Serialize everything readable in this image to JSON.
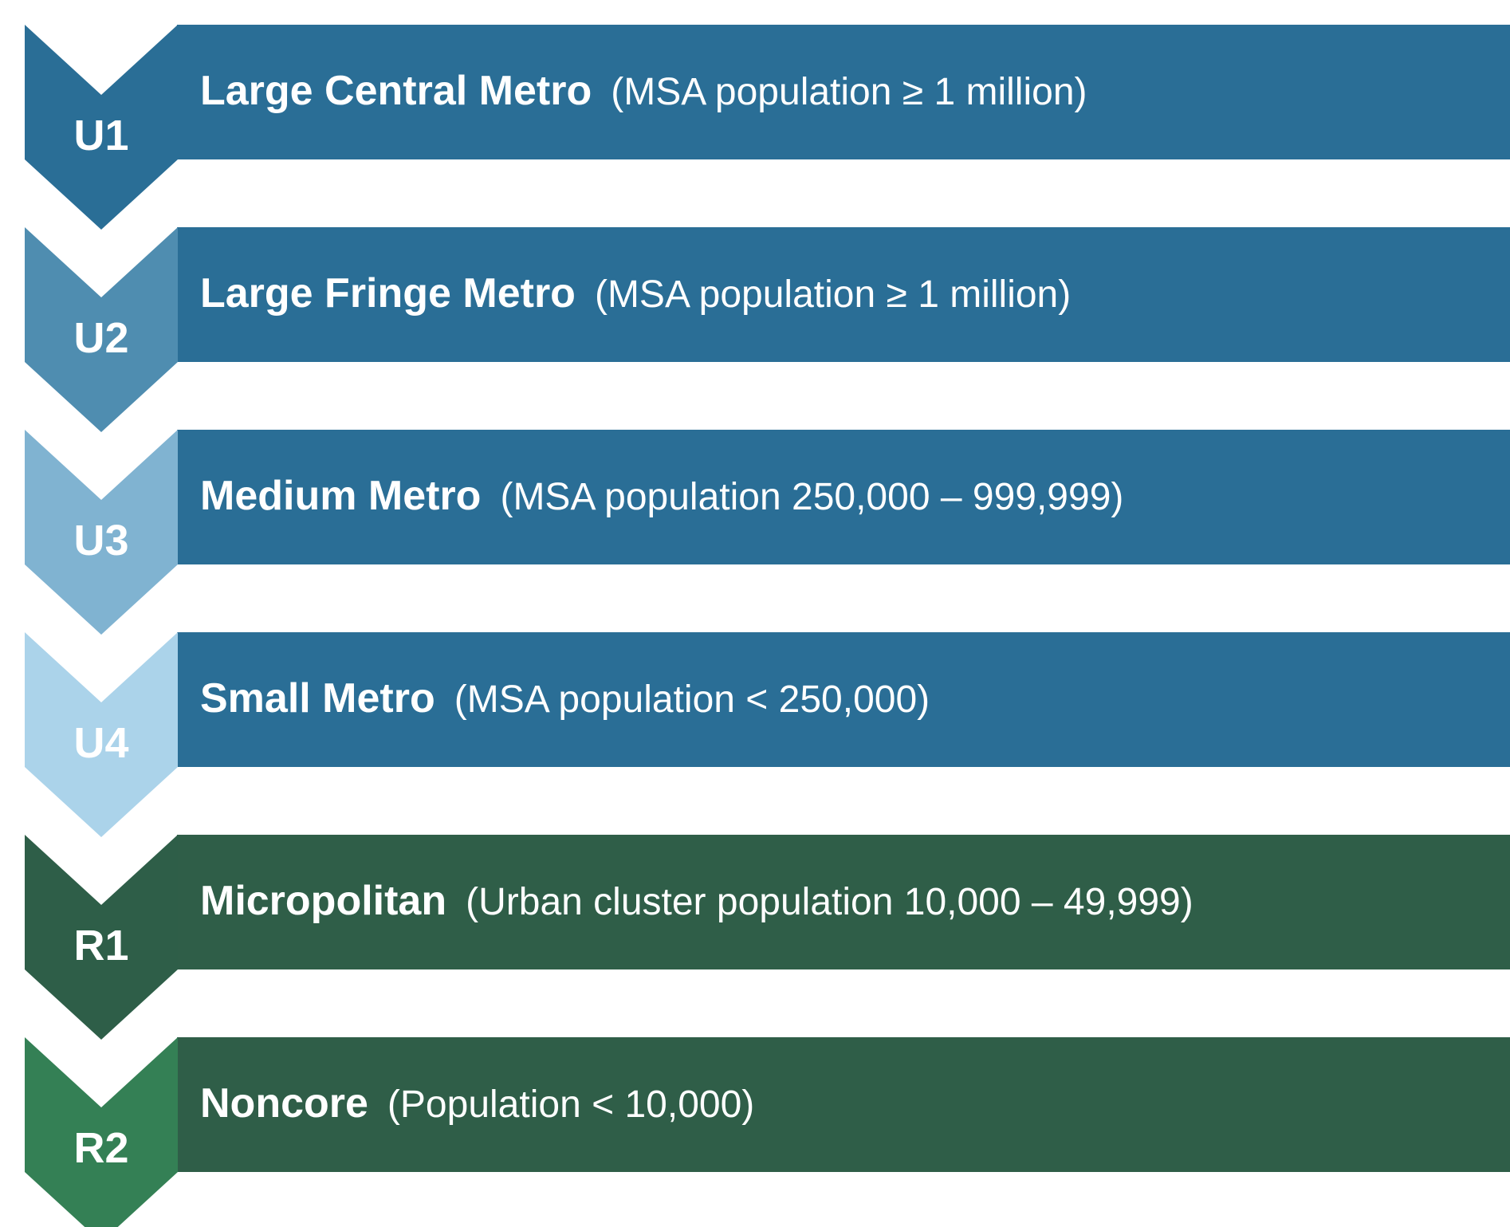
{
  "items": [
    {
      "code": "U1",
      "name": "Large Central Metro",
      "description": "(MSA population ≥ 1 million)",
      "color": "#2a6e96",
      "bar_color": "#2a6e96"
    },
    {
      "code": "U2",
      "name": "Large Fringe Metro",
      "description": "(MSA population ≥ 1 million)",
      "color": "#4f8db0",
      "bar_color": "#2a6e96"
    },
    {
      "code": "U3",
      "name": "Medium Metro",
      "description": "(MSA population 250,000 – 999,999)",
      "color": "#80b3d1",
      "bar_color": "#2a6e96"
    },
    {
      "code": "U4",
      "name": "Small Metro",
      "description": "(MSA population < 250,000)",
      "color": "#abd3ea",
      "bar_color": "#2a6e96"
    },
    {
      "code": "R1",
      "name": "Micropolitan",
      "description": "(Urban cluster population 10,000 – 49,999)",
      "color": "#2e5e48",
      "bar_color": "#2f5e48"
    },
    {
      "code": "R2",
      "name": "Noncore",
      "description": "(Population < 10,000)",
      "color": "#348055",
      "bar_color": "#2f5e48"
    }
  ]
}
